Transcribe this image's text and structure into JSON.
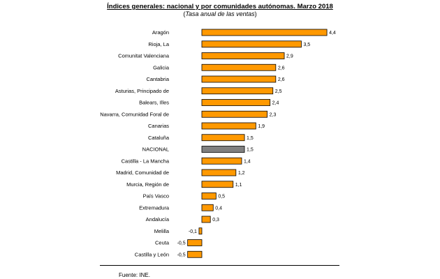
{
  "title": "Índices generales: nacional y por comunidades autónomas. Marzo 2018",
  "subtitle": {
    "open": "(",
    "text": "Tasa anual de las ventas",
    "close": ")"
  },
  "source": "Fuente: INE.",
  "colors": {
    "bar": "#FF9900",
    "highlight": "#808080",
    "outline": "#000000"
  },
  "chart_data": {
    "type": "bar",
    "orientation": "horizontal",
    "categories": [
      "Aragón",
      "Rioja, La",
      "Comunitat Valenciana",
      "Galicia",
      "Cantabria",
      "Asturias, Principado de",
      "Balears, Illes",
      "Navarra, Comunidad Foral de",
      "Canarias",
      "Cataluña",
      "NACIONAL",
      "Castilla - La Mancha",
      "Madrid, Comunidad de",
      "Murcia, Región de",
      "País Vasco",
      "Extremadura",
      "Andalucía",
      "Melilla",
      "Ceuta",
      "Castilla y León"
    ],
    "values": [
      4.4,
      3.5,
      2.9,
      2.6,
      2.6,
      2.5,
      2.4,
      2.3,
      1.9,
      1.5,
      1.5,
      1.4,
      1.2,
      1.1,
      0.5,
      0.4,
      0.3,
      -0.1,
      -0.5,
      -0.5
    ],
    "value_labels": [
      "4,4",
      "3,5",
      "2,9",
      "2,6",
      "2,6",
      "2,5",
      "2,4",
      "2,3",
      "1,9",
      "1,5",
      "1,5",
      "1,4",
      "1,2",
      "1,1",
      "0,5",
      "0,4",
      "0,3",
      "-0,1",
      "-0,5",
      "-0,5"
    ],
    "highlight_category": "NACIONAL",
    "xlim": [
      -0.5,
      4.4
    ],
    "grid": false,
    "legend": "none"
  }
}
